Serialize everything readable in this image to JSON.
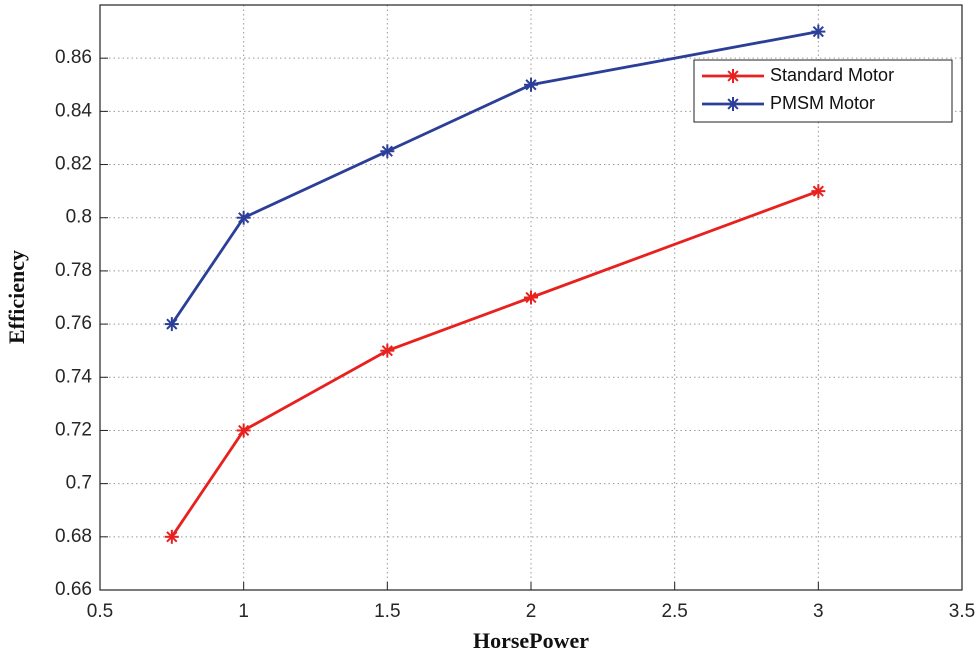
{
  "chart_data": {
    "type": "line",
    "x_label": "HorsePower",
    "y_label": "Efficiency",
    "xlim": [
      0.5,
      3.5
    ],
    "xticks": [
      0.5,
      1,
      1.5,
      2,
      2.5,
      3,
      3.5
    ],
    "ylim": [
      0.66,
      0.88
    ],
    "yticks": [
      0.66,
      0.68,
      0.7,
      0.72,
      0.74,
      0.76,
      0.78,
      0.8,
      0.82,
      0.84,
      0.86
    ],
    "grid": true,
    "legend": "upper right",
    "x": [
      0.75,
      1,
      1.5,
      2,
      3
    ],
    "series": [
      {
        "name": "Standard Motor",
        "color": "#e8201e",
        "values": [
          0.68,
          0.72,
          0.75,
          0.77,
          0.81
        ]
      },
      {
        "name": "PMSM Motor",
        "color": "#2c3f98",
        "values": [
          0.76,
          0.8,
          0.825,
          0.85,
          0.87
        ]
      }
    ]
  }
}
